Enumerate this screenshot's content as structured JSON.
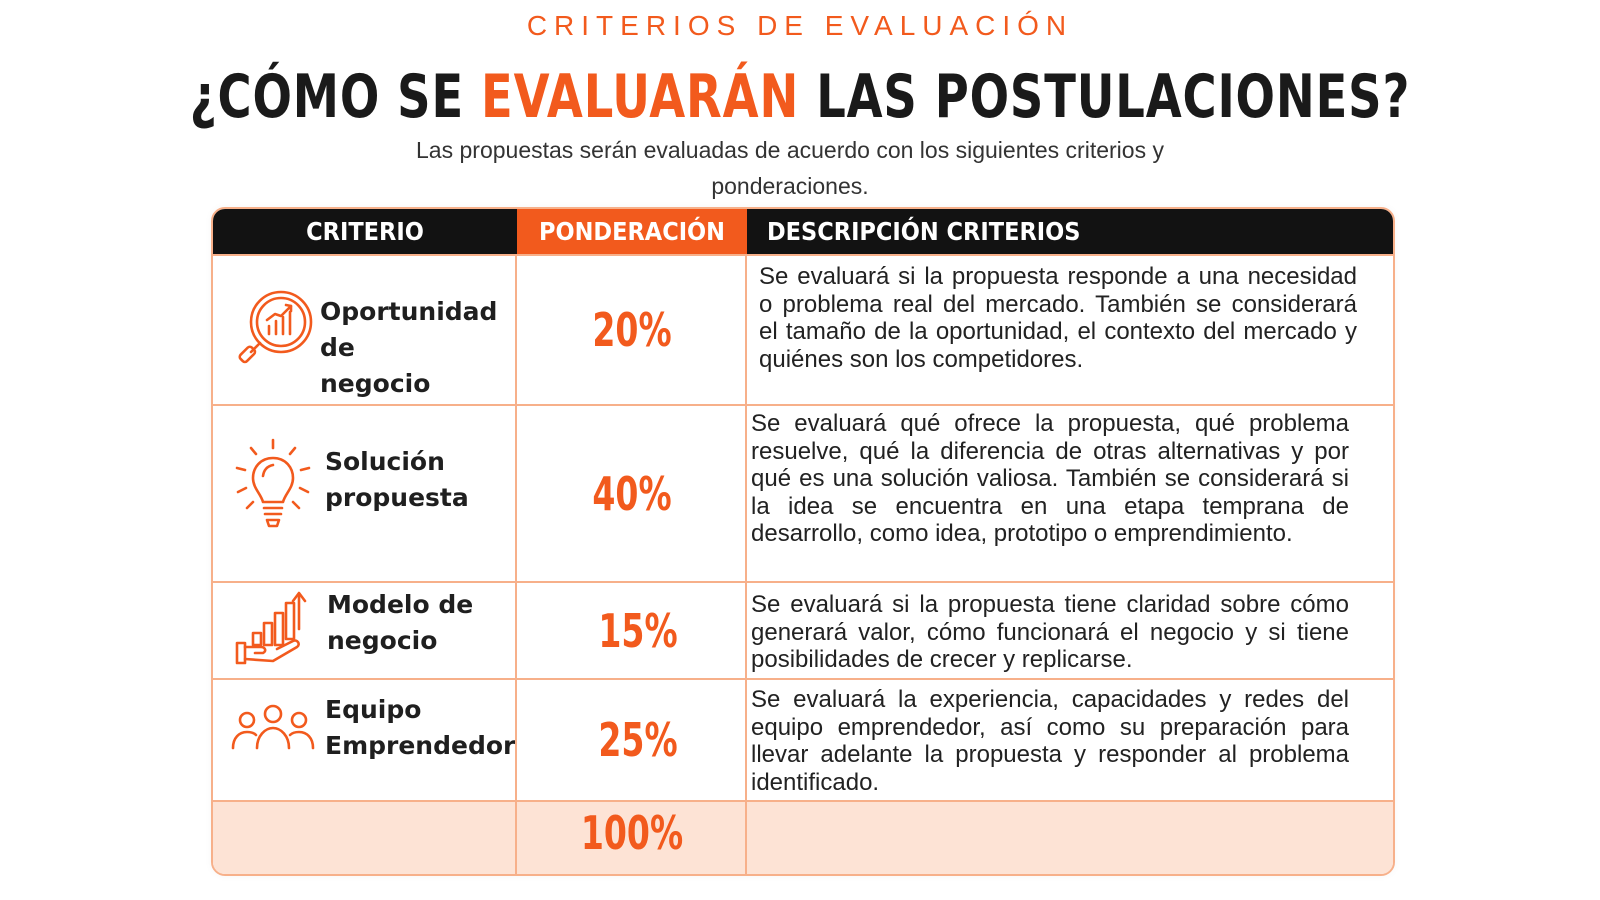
{
  "kicker": "CRITERIOS DE EVALUACIÓN",
  "headline": {
    "part1": "¿CÓMO SE ",
    "accent": "EVALUARÁN",
    "part2": " LAS POSTULACIONES?"
  },
  "subtitle": "Las propuestas serán evaluadas de acuerdo con los siguientes criterios y ponderaciones.",
  "colors": {
    "accent": "#f25a1d",
    "header_bg": "#121212",
    "border": "#f7b08a",
    "total_bg": "#fde3d5"
  },
  "table": {
    "headers": [
      "CRITERIO",
      "PONDERACIÓN",
      "DESCRIPCIÓN CRITERIOS"
    ],
    "rows": [
      {
        "icon": "magnifier-growth-chart-icon",
        "label_line1": "Oportunidad de",
        "label_line2": "negocio",
        "weight": "20%",
        "description": "Se evaluará si la propuesta responde a una necesidad o problema real del mercado. También se considerará el tamaño de la oportunidad, el contexto del mercado y quiénes son los competidores."
      },
      {
        "icon": "lightbulb-icon",
        "label_line1": "Solución",
        "label_line2": "propuesta",
        "weight": "40%",
        "description": "Se evaluará qué ofrece la propuesta, qué problema resuelve, qué la diferencia de otras alternativas y por qué es una solución valiosa. También se considerará si la idea se encuentra en una etapa temprana de desarrollo, como idea, prototipo o emprendimiento."
      },
      {
        "icon": "hand-growth-bars-icon",
        "label_line1": "Modelo de",
        "label_line2": "negocio",
        "weight": "15%",
        "description": "Se evaluará si la propuesta tiene claridad sobre cómo generará valor, cómo funcionará el negocio y si tiene posibilidades de crecer y replicarse."
      },
      {
        "icon": "team-people-icon",
        "label_line1": "Equipo",
        "label_line2": "Emprendedor",
        "weight": "25%",
        "description": "Se evaluará la experiencia, capacidades y redes del equipo emprendedor, así como su preparación para llevar adelante la propuesta y responder al problema identificado."
      }
    ],
    "total": "100%"
  }
}
